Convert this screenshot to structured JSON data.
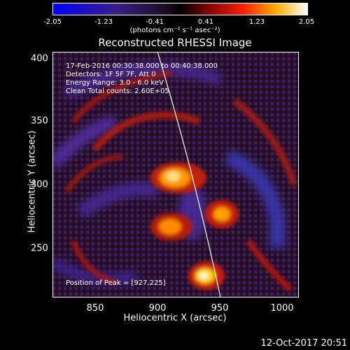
{
  "colorbar": {
    "ticks": [
      "-2.05",
      "-1.23",
      "-0.41",
      "0.41",
      "1.23",
      "2.05"
    ],
    "units": "(photons cm⁻² s⁻¹ asec⁻²)"
  },
  "plot": {
    "title": "Reconstructed RHESSI Image",
    "xlabel": "Heliocentric X (arcsec)",
    "ylabel": "Heliocentric Y (arcsec)",
    "x_ticks": [
      "850",
      "900",
      "950",
      "1000"
    ],
    "y_ticks": [
      "400",
      "350",
      "300",
      "250"
    ],
    "info": {
      "time": "17-Feb-2016 00:30:38.000 to 00:40:38.000",
      "detectors": "Detectors: 1F 5F 7F, Att 0",
      "energy": "Energy Range: 3.0 - 6.0 keV",
      "method": "Clean    Total counts: 2.60E+05",
      "peak": "Position of Peak = [927,225]"
    }
  },
  "timestamp": "12-Oct-2017 20:51"
}
